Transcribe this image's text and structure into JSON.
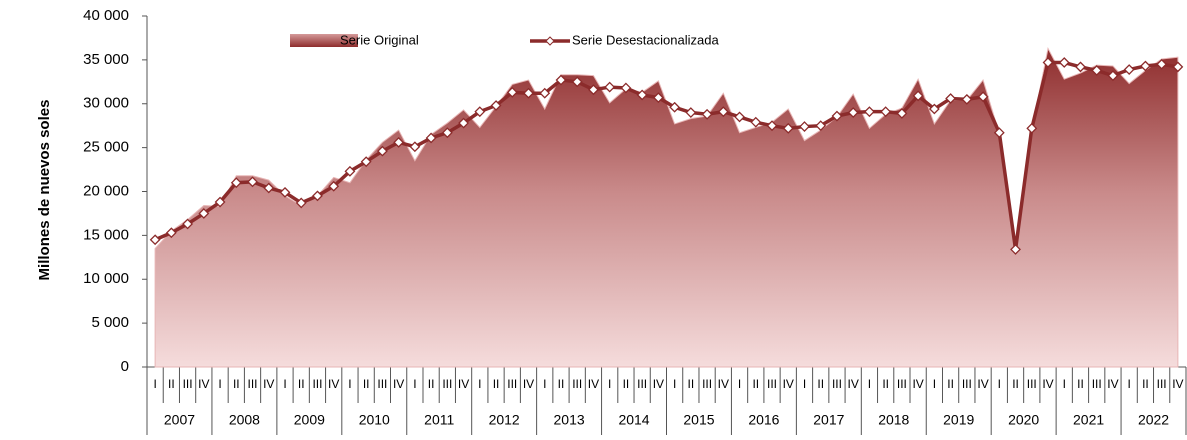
{
  "chart_data": {
    "type": "area-line",
    "y_label": "Millones de nuevos soles",
    "categories": [
      "I",
      "II",
      "III",
      "IV",
      "I",
      "II",
      "III",
      "IV",
      "I",
      "II",
      "III",
      "IV",
      "I",
      "II",
      "III",
      "IV",
      "I",
      "II",
      "III",
      "IV",
      "I",
      "II",
      "III",
      "IV",
      "I",
      "II",
      "III",
      "IV",
      "I",
      "II",
      "III",
      "IV",
      "I",
      "II",
      "III",
      "IV",
      "I",
      "II",
      "III",
      "IV",
      "I",
      "II",
      "III",
      "IV",
      "I",
      "II",
      "III",
      "IV",
      "I",
      "II",
      "III",
      "IV",
      "I",
      "II",
      "III",
      "IV",
      "I",
      "II",
      "III",
      "IV",
      "I",
      "II",
      "III",
      "IV"
    ],
    "years": [
      "2007",
      "2008",
      "2009",
      "2010",
      "2011",
      "2012",
      "2013",
      "2014",
      "2015",
      "2016",
      "2017",
      "2018",
      "2019",
      "2020",
      "2021",
      "2022"
    ],
    "series": [
      {
        "name": "Serie Original",
        "kind": "area",
        "color": "#8e2c2c",
        "values": [
          13500,
          15500,
          16800,
          18400,
          18300,
          21800,
          21800,
          21300,
          19500,
          18400,
          19500,
          21600,
          21000,
          23600,
          25600,
          27000,
          23500,
          26500,
          27800,
          29300,
          27300,
          29700,
          32200,
          32700,
          29400,
          33300,
          33300,
          33200,
          30100,
          31700,
          31300,
          32600,
          27700,
          28300,
          28600,
          31200,
          26700,
          27300,
          27900,
          29400,
          25800,
          27000,
          28500,
          31100,
          27200,
          28800,
          29500,
          32800,
          27700,
          30400,
          30400,
          32700,
          26600,
          13000,
          27000,
          36300,
          32800,
          33500,
          34400,
          34300,
          32300,
          33800,
          35100,
          35300
        ]
      },
      {
        "name": "Serie Desestacionalizada",
        "kind": "line",
        "color": "#8b2b2b",
        "values": [
          14500,
          15300,
          16300,
          17500,
          18800,
          21000,
          21100,
          20400,
          19900,
          18700,
          19500,
          20600,
          22300,
          23400,
          24600,
          25600,
          25100,
          26100,
          26700,
          27800,
          29100,
          29800,
          31300,
          31200,
          31200,
          32700,
          32500,
          31600,
          31900,
          31800,
          31000,
          30700,
          29600,
          29000,
          28800,
          29100,
          28500,
          27900,
          27500,
          27200,
          27400,
          27500,
          28600,
          29000,
          29100,
          29100,
          28900,
          30900,
          29400,
          30600,
          30500,
          30800,
          26700,
          13400,
          27200,
          34700,
          34700,
          34200,
          33800,
          33200,
          33900,
          34300,
          34500,
          34200
        ]
      }
    ],
    "ylim": [
      0,
      40000
    ],
    "yticks": [
      0,
      {
        "value": 5000,
        "label": "5 000"
      },
      {
        "value": 10000,
        "label": "10 000"
      },
      {
        "value": 15000,
        "label": "15 000"
      },
      {
        "value": 20000,
        "label": "20 000"
      },
      {
        "value": 25000,
        "label": "25 000"
      },
      {
        "value": 30000,
        "label": "30 000"
      },
      {
        "value": 35000,
        "label": "35 000"
      },
      {
        "value": 40000,
        "label": "40 000"
      }
    ]
  }
}
